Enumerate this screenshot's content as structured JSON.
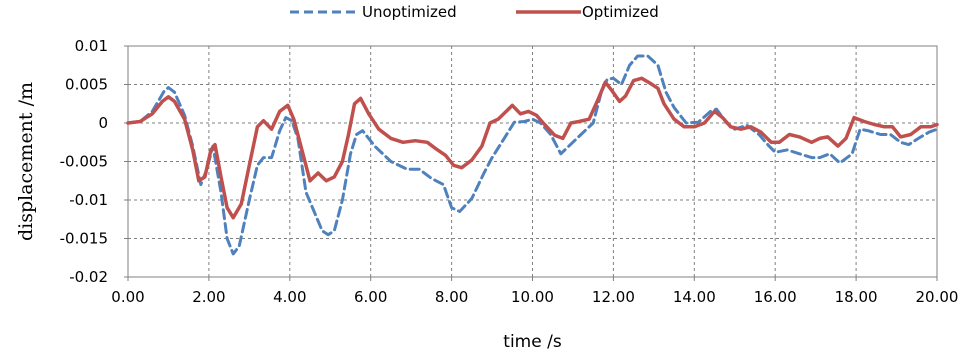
{
  "chart_data": {
    "type": "line",
    "xlabel": "time /s",
    "ylabel": "displacement /m",
    "xlim": [
      0,
      20
    ],
    "ylim": [
      -0.02,
      0.01
    ],
    "x_ticks": [
      "0.00",
      "2.00",
      "4.00",
      "6.00",
      "8.00",
      "10.00",
      "12.00",
      "14.00",
      "16.00",
      "18.00",
      "20.00"
    ],
    "y_ticks": [
      "0.01",
      "0.005",
      "0",
      "-0.005",
      "-0.01",
      "-0.015",
      "-0.02"
    ],
    "grid": true,
    "legend_position": "top-center",
    "series": [
      {
        "name": "Unoptimized",
        "color": "#4f81bd",
        "style": "dashed",
        "points": [
          [
            0.0,
            0.0
          ],
          [
            0.3,
            0.0002
          ],
          [
            0.6,
            0.0015
          ],
          [
            0.9,
            0.0042
          ],
          [
            1.0,
            0.0046
          ],
          [
            1.15,
            0.004
          ],
          [
            1.4,
            0.001
          ],
          [
            1.6,
            -0.003
          ],
          [
            1.8,
            -0.008
          ],
          [
            1.95,
            -0.006
          ],
          [
            2.1,
            -0.003
          ],
          [
            2.3,
            -0.009
          ],
          [
            2.45,
            -0.015
          ],
          [
            2.6,
            -0.017
          ],
          [
            2.75,
            -0.016
          ],
          [
            3.0,
            -0.01
          ],
          [
            3.2,
            -0.0055
          ],
          [
            3.35,
            -0.0045
          ],
          [
            3.55,
            -0.0045
          ],
          [
            3.75,
            -0.001
          ],
          [
            3.9,
            0.0007
          ],
          [
            4.05,
            0.0003
          ],
          [
            4.2,
            -0.002
          ],
          [
            4.4,
            -0.009
          ],
          [
            4.6,
            -0.0115
          ],
          [
            4.8,
            -0.014
          ],
          [
            4.95,
            -0.0145
          ],
          [
            5.1,
            -0.014
          ],
          [
            5.3,
            -0.01
          ],
          [
            5.5,
            -0.004
          ],
          [
            5.65,
            -0.0015
          ],
          [
            5.8,
            -0.001
          ],
          [
            6.1,
            -0.003
          ],
          [
            6.5,
            -0.005
          ],
          [
            6.9,
            -0.006
          ],
          [
            7.2,
            -0.006
          ],
          [
            7.5,
            -0.0072
          ],
          [
            7.8,
            -0.008
          ],
          [
            8.0,
            -0.011
          ],
          [
            8.2,
            -0.0115
          ],
          [
            8.5,
            -0.0098
          ],
          [
            8.8,
            -0.0065
          ],
          [
            9.0,
            -0.0045
          ],
          [
            9.3,
            -0.002
          ],
          [
            9.55,
            0.0001
          ],
          [
            9.8,
            0.0002
          ],
          [
            10.0,
            0.0005
          ],
          [
            10.2,
            0.0
          ],
          [
            10.45,
            -0.0015
          ],
          [
            10.7,
            -0.004
          ],
          [
            10.9,
            -0.003
          ],
          [
            11.2,
            -0.0015
          ],
          [
            11.5,
            0.0
          ],
          [
            11.7,
            0.004
          ],
          [
            11.85,
            0.0057
          ],
          [
            12.0,
            0.0058
          ],
          [
            12.2,
            0.005
          ],
          [
            12.4,
            0.0075
          ],
          [
            12.6,
            0.0087
          ],
          [
            12.85,
            0.0087
          ],
          [
            13.1,
            0.0075
          ],
          [
            13.3,
            0.004
          ],
          [
            13.5,
            0.002
          ],
          [
            13.8,
            0.0
          ],
          [
            14.1,
            0.0001
          ],
          [
            14.4,
            0.0015
          ],
          [
            14.55,
            0.0018
          ],
          [
            14.8,
            0.0
          ],
          [
            15.0,
            -0.0008
          ],
          [
            15.3,
            -0.0003
          ],
          [
            15.6,
            -0.0015
          ],
          [
            15.85,
            -0.003
          ],
          [
            16.0,
            -0.0038
          ],
          [
            16.3,
            -0.0035
          ],
          [
            16.6,
            -0.004
          ],
          [
            16.9,
            -0.0045
          ],
          [
            17.1,
            -0.0045
          ],
          [
            17.35,
            -0.004
          ],
          [
            17.6,
            -0.0052
          ],
          [
            17.9,
            -0.004
          ],
          [
            18.1,
            -0.0008
          ],
          [
            18.3,
            -0.001
          ],
          [
            18.6,
            -0.0015
          ],
          [
            18.85,
            -0.0015
          ],
          [
            19.1,
            -0.0025
          ],
          [
            19.3,
            -0.0028
          ],
          [
            19.6,
            -0.0018
          ],
          [
            19.8,
            -0.0012
          ],
          [
            20.0,
            -0.0008
          ]
        ]
      },
      {
        "name": "Optimized",
        "color": "#c0504d",
        "style": "solid",
        "points": [
          [
            0.0,
            0.0
          ],
          [
            0.3,
            0.0002
          ],
          [
            0.6,
            0.0012
          ],
          [
            0.85,
            0.0028
          ],
          [
            1.0,
            0.0034
          ],
          [
            1.15,
            0.0028
          ],
          [
            1.4,
            0.0005
          ],
          [
            1.6,
            -0.0035
          ],
          [
            1.75,
            -0.0075
          ],
          [
            1.9,
            -0.007
          ],
          [
            2.05,
            -0.0035
          ],
          [
            2.15,
            -0.0028
          ],
          [
            2.3,
            -0.007
          ],
          [
            2.45,
            -0.011
          ],
          [
            2.6,
            -0.0123
          ],
          [
            2.8,
            -0.0105
          ],
          [
            3.0,
            -0.0055
          ],
          [
            3.2,
            -0.0005
          ],
          [
            3.35,
            0.0003
          ],
          [
            3.55,
            -0.0008
          ],
          [
            3.75,
            0.0015
          ],
          [
            3.95,
            0.0023
          ],
          [
            4.1,
            0.0005
          ],
          [
            4.3,
            -0.0035
          ],
          [
            4.5,
            -0.0075
          ],
          [
            4.7,
            -0.0065
          ],
          [
            4.9,
            -0.0075
          ],
          [
            5.1,
            -0.007
          ],
          [
            5.3,
            -0.005
          ],
          [
            5.45,
            -0.0015
          ],
          [
            5.6,
            0.0025
          ],
          [
            5.75,
            0.0032
          ],
          [
            5.95,
            0.0012
          ],
          [
            6.2,
            -0.0008
          ],
          [
            6.5,
            -0.002
          ],
          [
            6.8,
            -0.0025
          ],
          [
            7.1,
            -0.0023
          ],
          [
            7.4,
            -0.0025
          ],
          [
            7.6,
            -0.0033
          ],
          [
            7.85,
            -0.0042
          ],
          [
            8.05,
            -0.0055
          ],
          [
            8.25,
            -0.0058
          ],
          [
            8.5,
            -0.0048
          ],
          [
            8.75,
            -0.003
          ],
          [
            8.95,
            0.0
          ],
          [
            9.15,
            0.0005
          ],
          [
            9.35,
            0.0015
          ],
          [
            9.5,
            0.0023
          ],
          [
            9.7,
            0.0012
          ],
          [
            9.9,
            0.0015
          ],
          [
            10.1,
            0.001
          ],
          [
            10.3,
            -0.0002
          ],
          [
            10.55,
            -0.0016
          ],
          [
            10.75,
            -0.002
          ],
          [
            10.95,
            0.0
          ],
          [
            11.15,
            0.0002
          ],
          [
            11.4,
            0.0005
          ],
          [
            11.6,
            0.0028
          ],
          [
            11.8,
            0.0053
          ],
          [
            11.95,
            0.0043
          ],
          [
            12.15,
            0.0028
          ],
          [
            12.3,
            0.0035
          ],
          [
            12.5,
            0.0055
          ],
          [
            12.7,
            0.0058
          ],
          [
            12.9,
            0.0052
          ],
          [
            13.1,
            0.0045
          ],
          [
            13.25,
            0.0025
          ],
          [
            13.5,
            0.0005
          ],
          [
            13.75,
            -0.0005
          ],
          [
            14.0,
            -0.0005
          ],
          [
            14.25,
            0.0
          ],
          [
            14.5,
            0.0015
          ],
          [
            14.7,
            0.0007
          ],
          [
            14.9,
            -0.0005
          ],
          [
            15.15,
            -0.0008
          ],
          [
            15.4,
            -0.0005
          ],
          [
            15.65,
            -0.0012
          ],
          [
            15.9,
            -0.0025
          ],
          [
            16.1,
            -0.0025
          ],
          [
            16.35,
            -0.0015
          ],
          [
            16.6,
            -0.0018
          ],
          [
            16.9,
            -0.0025
          ],
          [
            17.1,
            -0.002
          ],
          [
            17.3,
            -0.0018
          ],
          [
            17.55,
            -0.003
          ],
          [
            17.75,
            -0.002
          ],
          [
            17.95,
            0.0007
          ],
          [
            18.2,
            0.0002
          ],
          [
            18.45,
            -0.0002
          ],
          [
            18.7,
            -0.0005
          ],
          [
            18.9,
            -0.0005
          ],
          [
            19.1,
            -0.0018
          ],
          [
            19.35,
            -0.0015
          ],
          [
            19.6,
            -0.0005
          ],
          [
            19.85,
            -0.0005
          ],
          [
            20.0,
            -0.0002
          ]
        ]
      }
    ]
  }
}
